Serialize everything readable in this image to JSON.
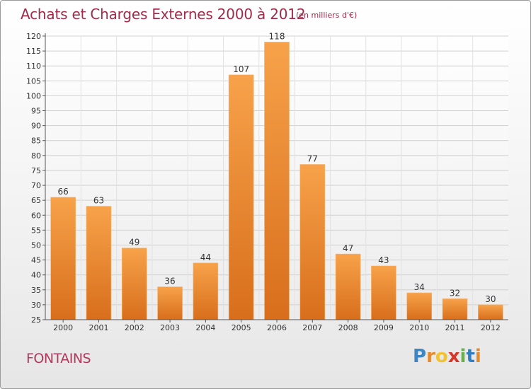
{
  "title": "Achats et Charges Externes 2000 à 2012",
  "subtitle": "(en milliers d'€)",
  "place": "FONTAINS",
  "logo": {
    "letters": [
      "P",
      "r",
      "o",
      "x",
      "i",
      "t",
      "i"
    ],
    "colors": [
      "#3d86c6",
      "#e58a2a",
      "#f2c230",
      "#d8352a",
      "#6ab04c",
      "#2f7fc1",
      "#e58a2a"
    ]
  },
  "colors": {
    "bar_light": "#f7a24a",
    "bar_dark": "#d86e1c",
    "title": "#a02c4a",
    "grid": "#d0d0d0"
  },
  "chart_data": {
    "type": "bar",
    "categories": [
      "2000",
      "2001",
      "2002",
      "2003",
      "2004",
      "2005",
      "2006",
      "2007",
      "2008",
      "2009",
      "2010",
      "2011",
      "2012"
    ],
    "values": [
      66,
      63,
      49,
      36,
      44,
      107,
      118,
      77,
      47,
      43,
      34,
      32,
      30
    ],
    "yticks": [
      25,
      30,
      35,
      40,
      45,
      50,
      55,
      60,
      65,
      70,
      75,
      80,
      85,
      90,
      95,
      100,
      105,
      110,
      115,
      120
    ],
    "ylim": [
      25,
      120
    ],
    "grid": true,
    "legend": "none"
  }
}
